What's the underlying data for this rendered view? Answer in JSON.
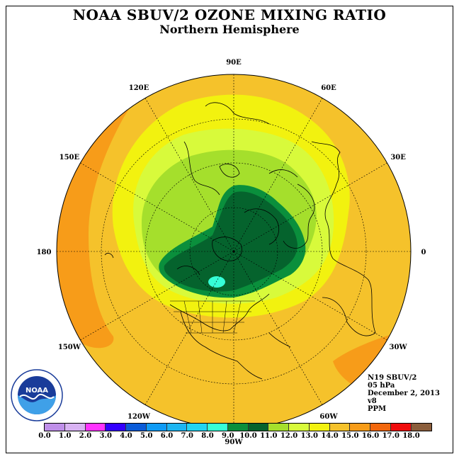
{
  "title": "NOAA SBUV/2 OZONE MIXING RATIO",
  "subtitle": "Northern Hemisphere",
  "longitude_labels": [
    {
      "text": "90E",
      "lon": 90
    },
    {
      "text": "60E",
      "lon": 60
    },
    {
      "text": "30E",
      "lon": 30
    },
    {
      "text": "0",
      "lon": 0
    },
    {
      "text": "30W",
      "lon": -30
    },
    {
      "text": "60W",
      "lon": -60
    },
    {
      "text": "90W",
      "lon": -90
    },
    {
      "text": "120W",
      "lon": -120
    },
    {
      "text": "150W",
      "lon": -150
    },
    {
      "text": "180",
      "lon": 180
    },
    {
      "text": "150E",
      "lon": 150
    },
    {
      "text": "120E",
      "lon": 120
    }
  ],
  "info": {
    "satellite": "N19 SBUV/2",
    "level": "05 hPa",
    "date": "December 2, 2013",
    "version": "v8",
    "units": "PPM"
  },
  "legend": {
    "ticks": [
      "0.0",
      "1.0",
      "2.0",
      "3.0",
      "4.0",
      "5.0",
      "6.0",
      "7.0",
      "8.0",
      "9.0",
      "10.0",
      "11.0",
      "12.0",
      "13.0",
      "14.0",
      "15.0",
      "16.0",
      "17.0",
      "18.0"
    ],
    "colors": [
      "#bf8fe9",
      "#d8b2f2",
      "#ff33ff",
      "#3300ff",
      "#0a5bd8",
      "#0f9bf5",
      "#1cb5f2",
      "#22d4f2",
      "#36ffd7",
      "#0a8f3c",
      "#05632d",
      "#a5df2c",
      "#d8fa3b",
      "#f2f20f",
      "#f5c22b",
      "#f79c19",
      "#f2670d",
      "#f00c0c",
      "#8b5e3c"
    ]
  },
  "logo_text": "NOAA",
  "colors": {
    "field_base": "#f5c22b",
    "band_14": "#f79c19",
    "band_12": "#f2f20f",
    "band_11": "#d8fa3b",
    "band_10": "#a5df2c",
    "band_9": "#0a8f3c",
    "band_8": "#05632d",
    "peak": "#36ffd7"
  }
}
